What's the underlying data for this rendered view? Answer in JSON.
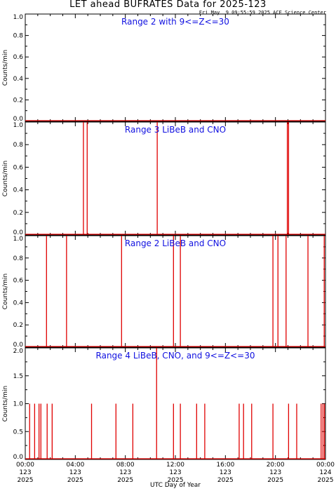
{
  "header": {
    "title": "LET ahead BUFRATES Data for 2025-123",
    "timestamp": "Fri May  9 09:55:59 2025 ACE Science Center"
  },
  "colors": {
    "data": "#e00000",
    "panel_title": "#1010e0",
    "axes": "#000000"
  },
  "chart_data": [
    {
      "type": "line",
      "title": "Range 2 with 9<=Z<=30",
      "ylabel": "Counts/min",
      "ylim": [
        0,
        1.0
      ],
      "yticks": [
        "0.0",
        "0.2",
        "0.4",
        "0.6",
        "0.8",
        "1.0"
      ],
      "events": []
    },
    {
      "type": "line",
      "title": "Range 3 LiBeB and CNO",
      "ylabel": "Counts/min",
      "ylim": [
        0,
        1.0
      ],
      "yticks": [
        "0.0",
        "0.2",
        "0.4",
        "0.6",
        "0.8",
        "1.0"
      ],
      "events": [
        {
          "hour": 4.65,
          "value": 1.0
        },
        {
          "hour": 4.95,
          "value": 1.0
        },
        {
          "hour": 10.55,
          "value": 1.0
        },
        {
          "hour": 20.95,
          "value": 1.0
        },
        {
          "hour": 21.05,
          "value": 1.0
        }
      ]
    },
    {
      "type": "line",
      "title": "Range 2 LiBeB and CNO",
      "ylabel": "Counts/min",
      "ylim": [
        0,
        1.0
      ],
      "yticks": [
        "0.0",
        "0.2",
        "0.4",
        "0.6",
        "0.8",
        "1.0"
      ],
      "events": [
        {
          "hour": 1.7,
          "value": 1.0
        },
        {
          "hour": 3.3,
          "value": 1.0
        },
        {
          "hour": 7.7,
          "value": 1.0
        },
        {
          "hour": 11.85,
          "value": 1.0
        },
        {
          "hour": 12.4,
          "value": 1.0
        },
        {
          "hour": 19.8,
          "value": 1.0
        },
        {
          "hour": 20.2,
          "value": 1.0
        },
        {
          "hour": 20.85,
          "value": 1.0
        },
        {
          "hour": 22.6,
          "value": 1.0
        },
        {
          "hour": 23.9,
          "value": 1.0
        }
      ]
    },
    {
      "type": "line",
      "title": "Range 4 LiBeB, CNO, and 9<=Z<=30",
      "ylabel": "Counts/min",
      "ylim": [
        0,
        2.0
      ],
      "yticks": [
        "0.0",
        "0.5",
        "1.0",
        "1.5",
        "2.0"
      ],
      "events": [
        {
          "hour": 0.35,
          "value": 1.0
        },
        {
          "hour": 0.75,
          "value": 1.0
        },
        {
          "hour": 1.1,
          "value": 1.0
        },
        {
          "hour": 1.25,
          "value": 1.0
        },
        {
          "hour": 1.75,
          "value": 1.0
        },
        {
          "hour": 2.15,
          "value": 1.0
        },
        {
          "hour": 5.3,
          "value": 1.0
        },
        {
          "hour": 7.25,
          "value": 1.0
        },
        {
          "hour": 8.6,
          "value": 1.0
        },
        {
          "hour": 10.5,
          "value": 2.0
        },
        {
          "hour": 11.85,
          "value": 1.0
        },
        {
          "hour": 12.4,
          "value": 1.0
        },
        {
          "hour": 13.7,
          "value": 1.0
        },
        {
          "hour": 14.35,
          "value": 1.0
        },
        {
          "hour": 17.1,
          "value": 1.0
        },
        {
          "hour": 17.45,
          "value": 1.0
        },
        {
          "hour": 18.1,
          "value": 1.0
        },
        {
          "hour": 19.8,
          "value": 1.0
        },
        {
          "hour": 21.05,
          "value": 1.0
        },
        {
          "hour": 21.7,
          "value": 1.0
        },
        {
          "hour": 23.65,
          "value": 1.0
        },
        {
          "hour": 23.8,
          "value": 1.0
        },
        {
          "hour": 23.92,
          "value": 1.0
        }
      ]
    }
  ],
  "x_axis": {
    "xlabel": "UTC Day of Year",
    "xlim_hours": [
      0,
      24
    ],
    "ticks": [
      {
        "hour": 0,
        "time": "00:00",
        "doy": "123",
        "year": "2025"
      },
      {
        "hour": 4,
        "time": "04:00",
        "doy": "123",
        "year": "2025"
      },
      {
        "hour": 8,
        "time": "08:00",
        "doy": "123",
        "year": "2025"
      },
      {
        "hour": 12,
        "time": "12:00",
        "doy": "123",
        "year": "2025"
      },
      {
        "hour": 16,
        "time": "16:00",
        "doy": "123",
        "year": "2025"
      },
      {
        "hour": 20,
        "time": "20:00",
        "doy": "123",
        "year": "2025"
      },
      {
        "hour": 24,
        "time": "00:00",
        "doy": "124",
        "year": "2025"
      }
    ]
  }
}
